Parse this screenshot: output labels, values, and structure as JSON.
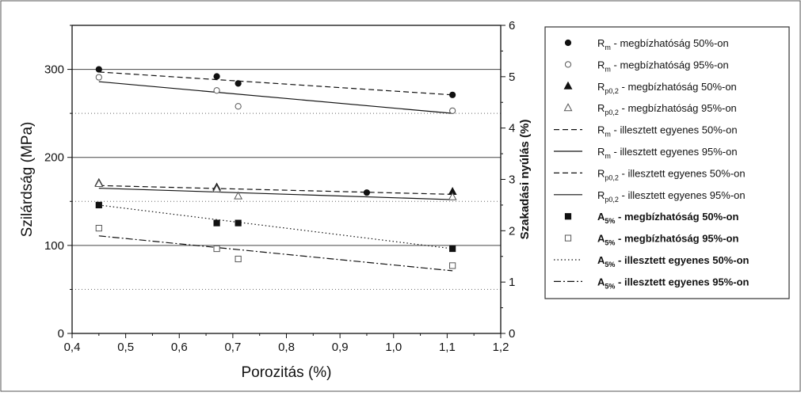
{
  "chart_data": {
    "type": "scatter",
    "xlabel": "Porozitás (%)",
    "ylabel": "Szilárdság (MPa)",
    "y2label": "Szakadási nyúlás (%)",
    "xlim": [
      0.4,
      1.2
    ],
    "ylim": [
      0,
      350
    ],
    "y2lim": [
      0,
      6
    ],
    "x_ticks": [
      "0,4",
      "0,5",
      "0,6",
      "0,7",
      "0,8",
      "0,9",
      "1,0",
      "1,1",
      "1,2"
    ],
    "y_ticks": [
      "0",
      "100",
      "200",
      "300"
    ],
    "y2_ticks": [
      "0",
      "1",
      "2",
      "3",
      "4",
      "5",
      "6"
    ],
    "grid": "horizontal gridlines (solid at y=100,200,300; dotted at 50,150,250)",
    "legend_position": "right",
    "series": [
      {
        "name": "Rm - megbízhatóság 50%-on",
        "axis": "left",
        "marker": "filled-circle",
        "x": [
          0.45,
          0.67,
          0.71,
          0.95,
          1.11
        ],
        "y": [
          300,
          292,
          284,
          160,
          271
        ]
      },
      {
        "name": "Rm - megbízhatóság 95%-on",
        "axis": "left",
        "marker": "open-circle",
        "x": [
          0.45,
          0.67,
          0.71,
          1.11
        ],
        "y": [
          291,
          276,
          258,
          253
        ]
      },
      {
        "name": "Rp0,2 - megbízhatóság 50%-on",
        "axis": "left",
        "marker": "filled-triangle",
        "x": [
          0.45,
          0.67,
          1.11
        ],
        "y": [
          171,
          166,
          161
        ]
      },
      {
        "name": "Rp0,2 - megbízhatóság 95%-on",
        "axis": "left",
        "marker": "open-triangle",
        "x": [
          0.45,
          0.67,
          0.71,
          1.11
        ],
        "y": [
          170,
          164,
          156,
          155
        ]
      },
      {
        "name": "A5% - megbízhatóság 50%-on",
        "axis": "right",
        "marker": "filled-square",
        "x": [
          0.45,
          0.67,
          0.71,
          1.11
        ],
        "y": [
          2.5,
          2.15,
          2.15,
          1.65
        ]
      },
      {
        "name": "A5% - megbízhatóság 95%-on",
        "axis": "right",
        "marker": "open-square",
        "x": [
          0.45,
          0.67,
          0.71,
          1.11
        ],
        "y": [
          2.05,
          1.65,
          1.45,
          1.32
        ]
      }
    ],
    "fit_lines": [
      {
        "name": "Rm - illesztett egyenes 50%-on",
        "axis": "left",
        "style": "dashed",
        "x": [
          0.45,
          1.11
        ],
        "y": [
          297,
          271
        ]
      },
      {
        "name": "Rm - illesztett egyenes 95%-on",
        "axis": "left",
        "style": "solid",
        "x": [
          0.45,
          1.11
        ],
        "y": [
          286,
          250
        ]
      },
      {
        "name": "Rp0,2 - illesztett egyenes 50%-on",
        "axis": "left",
        "style": "dashed",
        "x": [
          0.45,
          1.11
        ],
        "y": [
          168,
          158
        ]
      },
      {
        "name": "Rp0,2 - illesztett egyenes 95%-on",
        "axis": "left",
        "style": "solid",
        "x": [
          0.45,
          1.11
        ],
        "y": [
          165,
          152
        ]
      },
      {
        "name": "A5% - illesztett egyenes 50%-on",
        "axis": "right",
        "style": "dotted",
        "x": [
          0.45,
          1.11
        ],
        "y": [
          2.5,
          1.65
        ]
      },
      {
        "name": "A5% - illesztett egyenes 95%-on",
        "axis": "right",
        "style": "dashdot",
        "x": [
          0.45,
          1.11
        ],
        "y": [
          1.9,
          1.22
        ]
      }
    ]
  },
  "legend": [
    {
      "main": "R",
      "sub": "m",
      "text": " - megbízhatóság 50%-on",
      "sample": "filled-circle",
      "bold": false
    },
    {
      "main": "R",
      "sub": "m",
      "text": " - megbízhatóság 95%-on",
      "sample": "open-circle",
      "bold": false
    },
    {
      "main": "R",
      "sub": "p0,2",
      "text": " - megbízhatóság 50%-on",
      "sample": "filled-triangle",
      "bold": false
    },
    {
      "main": "R",
      "sub": "p0,2",
      "text": " - megbízhatóság 95%-on",
      "sample": "open-triangle",
      "bold": false
    },
    {
      "main": "R",
      "sub": "m",
      "text": " - illesztett egyenes 50%-on",
      "sample": "dashed",
      "bold": false
    },
    {
      "main": "R",
      "sub": "m",
      "text": " - illesztett egyenes 95%-on",
      "sample": "solid",
      "bold": false
    },
    {
      "main": "R",
      "sub": "p0,2",
      "text": " - illesztett egyenes 50%-on",
      "sample": "dashed",
      "bold": false
    },
    {
      "main": "R",
      "sub": "p0,2",
      "text": " - illesztett egyenes 95%-on",
      "sample": "solid",
      "bold": false
    },
    {
      "main": "A",
      "sub": "5%",
      "text": " - megbízhatóság 50%-on",
      "sample": "filled-square",
      "bold": true
    },
    {
      "main": "A",
      "sub": "5%",
      "text": " - megbízhatóság 95%-on",
      "sample": "open-square",
      "bold": true
    },
    {
      "main": "A",
      "sub": "5%",
      "text": " - illesztett egyenes 50%-on",
      "sample": "dotted",
      "bold": true
    },
    {
      "main": "A",
      "sub": "5%",
      "text": " - illesztett egyenes 95%-on",
      "sample": "dashdot",
      "bold": true
    }
  ]
}
